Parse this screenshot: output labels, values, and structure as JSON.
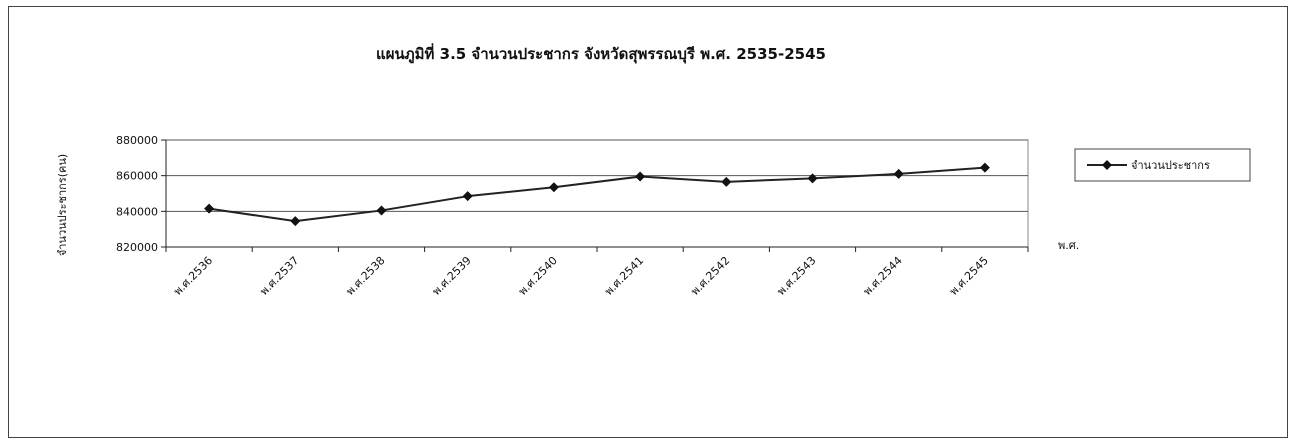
{
  "chart_data": {
    "type": "line",
    "title": "แผนภูมิที่ 3.5 จำนวนประชากร จังหวัดสุพรรณบุรี พ.ศ. 2535-2545",
    "xlabel": "พ.ศ.",
    "ylabel": "จำนวนประชากร(คน)",
    "categories": [
      "พ.ศ.2536",
      "พ.ศ.2537",
      "พ.ศ.2538",
      "พ.ศ.2539",
      "พ.ศ.2540",
      "พ.ศ.2541",
      "พ.ศ.2542",
      "พ.ศ.2543",
      "พ.ศ.2544",
      "พ.ศ.2545"
    ],
    "series": [
      {
        "name": "จำนวนประชากร",
        "values": [
          841500,
          834500,
          840500,
          848500,
          853500,
          859500,
          856500,
          858500,
          861000,
          864500
        ]
      }
    ],
    "ylim": [
      820000,
      880000
    ],
    "yticks": [
      820000,
      840000,
      860000,
      880000
    ],
    "ytick_labels": [
      "820000",
      "840000",
      "860000",
      "880000"
    ],
    "grid": "horizontal",
    "legend_position": "right",
    "colors": {
      "line": "#222222",
      "marker": "#111111",
      "grid": "#555555",
      "border": "#444444"
    }
  }
}
